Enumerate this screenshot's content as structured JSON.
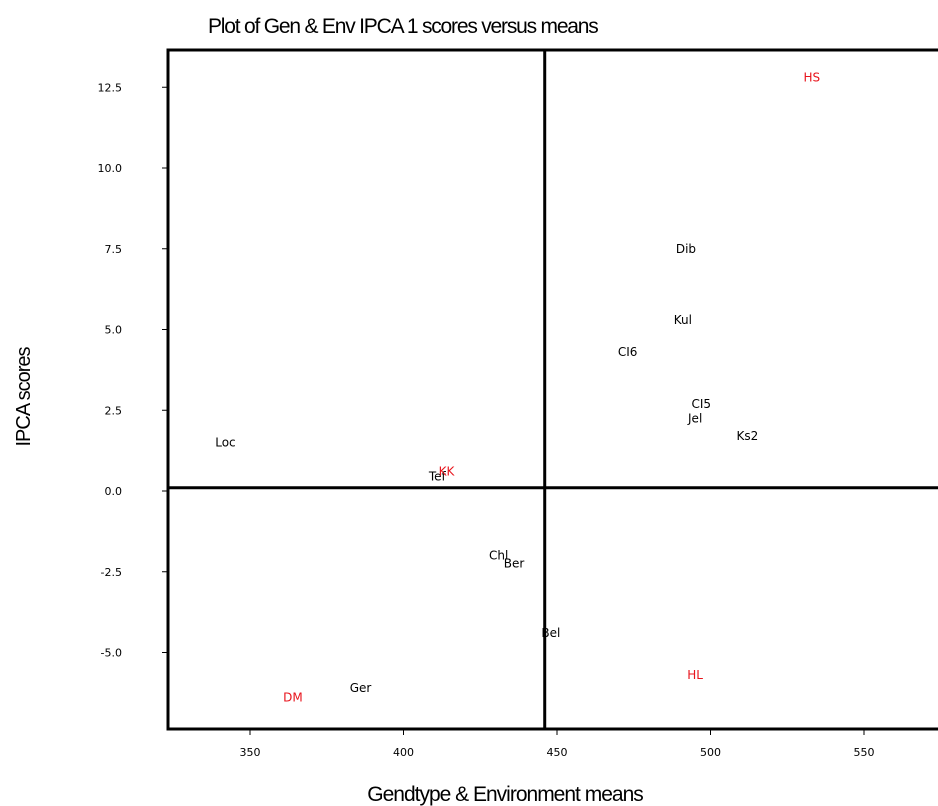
{
  "chart_data": {
    "type": "scatter",
    "title": "Plot of Gen & Env IPCA 1 scores versus means",
    "xlabel": "Gendtype & Environment means",
    "ylabel": "IPCA scores",
    "xlim": [
      322,
      580
    ],
    "ylim": [
      -7.5,
      13.6
    ],
    "x_ticks": [
      "350",
      "400",
      "450",
      "500",
      "550"
    ],
    "y_ticks": [
      "12.5",
      "10.0",
      "7.5",
      "5.0",
      "2.5",
      "0.0",
      "-2.5",
      "-5.0"
    ],
    "x_tick_values": [
      350,
      400,
      450,
      500,
      550
    ],
    "y_tick_values": [
      12.5,
      10.0,
      7.5,
      5.0,
      2.5,
      0.0,
      -2.5,
      -5.0
    ],
    "reference_lines": {
      "x": 446,
      "y": 0.1
    },
    "grid": false,
    "colors": {
      "genotype": "#000000",
      "environment": "#e8141c"
    },
    "series": [
      {
        "group": "genotype",
        "points": [
          {
            "label": "Dib",
            "x": 492,
            "y": 7.5
          },
          {
            "label": "Kul",
            "x": 491,
            "y": 5.3
          },
          {
            "label": "CI6",
            "x": 473,
            "y": 4.3
          },
          {
            "label": "CI5",
            "x": 497,
            "y": 2.7
          },
          {
            "label": "Jel",
            "x": 495,
            "y": 2.25
          },
          {
            "label": "Ks2",
            "x": 512,
            "y": 1.7
          },
          {
            "label": "Loc",
            "x": 342,
            "y": 1.5
          },
          {
            "label": "Tef",
            "x": 411,
            "y": 0.45
          },
          {
            "label": "Chl",
            "x": 431,
            "y": -2.0
          },
          {
            "label": "Ber",
            "x": 436,
            "y": -2.25
          },
          {
            "label": "Bel",
            "x": 448,
            "y": -4.4
          },
          {
            "label": "Ger",
            "x": 386,
            "y": -6.1
          }
        ]
      },
      {
        "group": "environment",
        "points": [
          {
            "label": "HS",
            "x": 533,
            "y": 12.8
          },
          {
            "label": "KK",
            "x": 414,
            "y": 0.6
          },
          {
            "label": "HL",
            "x": 495,
            "y": -5.7
          },
          {
            "label": "DM",
            "x": 364,
            "y": -6.4
          }
        ]
      }
    ]
  }
}
